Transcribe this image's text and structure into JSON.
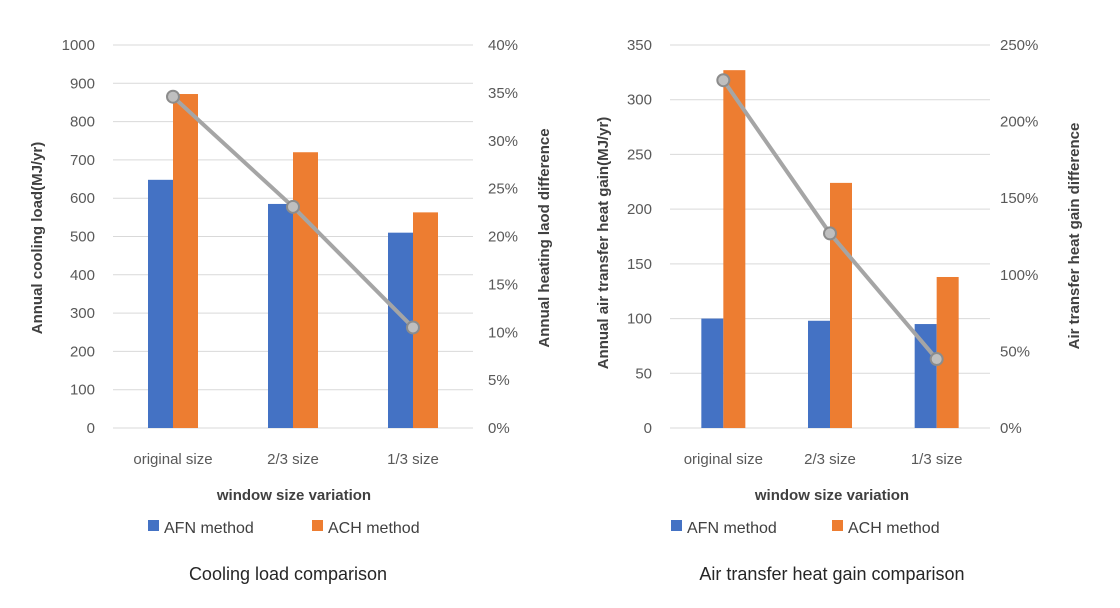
{
  "colors": {
    "afn": "#4472C4",
    "ach": "#ED7D31",
    "line": "#A5A5A5",
    "marker_fill": "#BFBFBF",
    "grid": "#D9D9D9"
  },
  "chart_data": [
    {
      "type": "bar",
      "caption": "Cooling load comparison",
      "xlabel": "window size variation",
      "ylabel": "Annual cooling load(MJ/yr)",
      "y2label": "Annual heating laod difference",
      "categories": [
        "original size",
        "2/3 size",
        "1/3 size"
      ],
      "ylim": [
        0,
        1000
      ],
      "yticks": [
        "0",
        "100",
        "200",
        "300",
        "400",
        "500",
        "600",
        "700",
        "800",
        "900",
        "1000"
      ],
      "y2lim": [
        0,
        40
      ],
      "y2ticks": [
        "0%",
        "5%",
        "10%",
        "15%",
        "20%",
        "25%",
        "30%",
        "35%",
        "40%"
      ],
      "series": [
        {
          "name": "AFN method",
          "values": [
            648,
            585,
            510
          ]
        },
        {
          "name": "ACH method",
          "values": [
            872,
            720,
            563
          ]
        }
      ],
      "line_series": {
        "name": "difference",
        "axis": "secondary",
        "values": [
          34.6,
          23.1,
          10.5
        ]
      },
      "legend": [
        "AFN method",
        "ACH method"
      ]
    },
    {
      "type": "bar",
      "caption": "Air transfer heat gain comparison",
      "xlabel": "window size variation",
      "ylabel": "Annual air transfer heat gain(MJ/yr)",
      "y2label": "Air transfer heat gain difference",
      "categories": [
        "original size",
        "2/3 size",
        "1/3 size"
      ],
      "ylim": [
        0,
        350
      ],
      "yticks": [
        "0",
        "50",
        "100",
        "150",
        "200",
        "250",
        "300",
        "350"
      ],
      "y2lim": [
        0,
        250
      ],
      "y2ticks": [
        "0%",
        "50%",
        "100%",
        "150%",
        "200%",
        "250%"
      ],
      "series": [
        {
          "name": "AFN method",
          "values": [
            100,
            98,
            95
          ]
        },
        {
          "name": "ACH method",
          "values": [
            327,
            224,
            138
          ]
        }
      ],
      "line_series": {
        "name": "difference",
        "axis": "secondary",
        "values": [
          227,
          127,
          45
        ]
      },
      "legend": [
        "AFN method",
        "ACH method"
      ]
    }
  ]
}
